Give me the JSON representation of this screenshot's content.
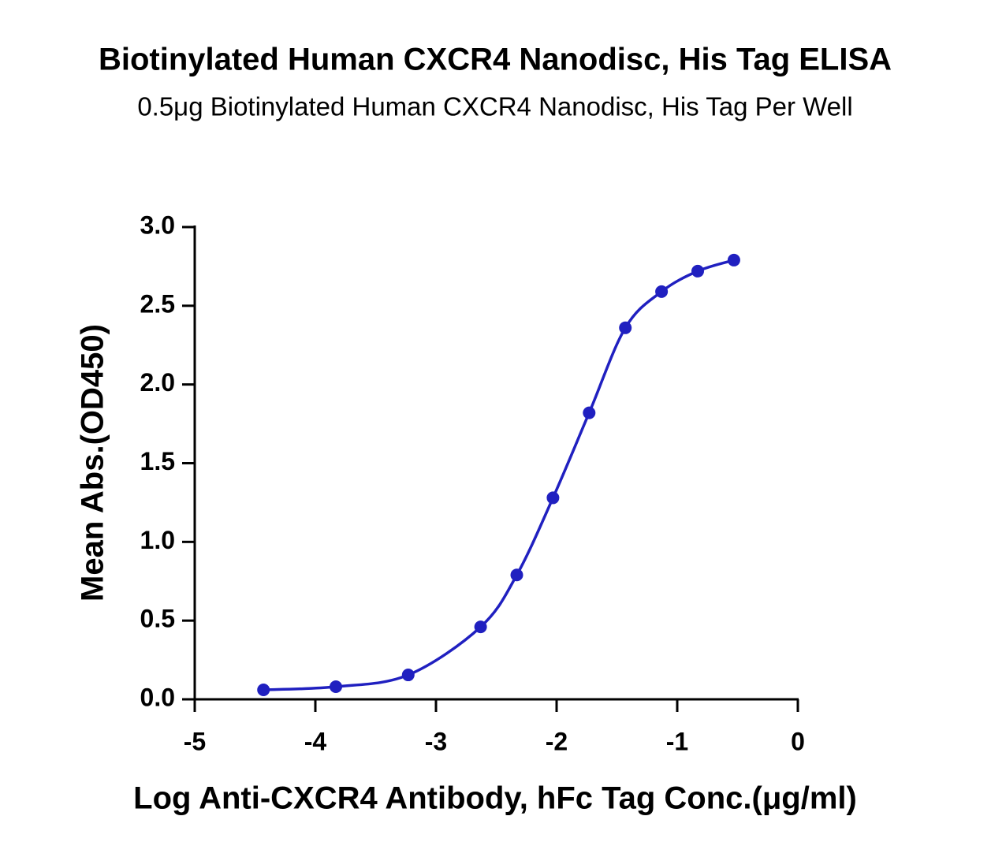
{
  "chart_data": {
    "type": "scatter",
    "title": "Biotinylated Human CXCR4 Nanodisc, His Tag ELISA",
    "subtitle": "0.5μg Biotinylated Human CXCR4 Nanodisc, His Tag Per Well",
    "xlabel": "Log Anti-CXCR4 Antibody, hFc Tag Conc.(μg/ml)",
    "ylabel": "Mean Abs.(OD450)",
    "x": [
      -4.43,
      -3.83,
      -3.23,
      -2.63,
      -2.33,
      -2.03,
      -1.73,
      -1.43,
      -1.13,
      -0.83,
      -0.53
    ],
    "y": [
      0.06,
      0.08,
      0.155,
      0.46,
      0.79,
      1.28,
      1.82,
      2.36,
      2.59,
      2.72,
      2.79
    ],
    "color": "#2020c0",
    "fit_line": true,
    "xlim": [
      -5,
      0
    ],
    "ylim": [
      0,
      3
    ],
    "xticks": [
      -5,
      -4,
      -3,
      -2,
      -1,
      0
    ],
    "yticks": [
      {
        "value": 0,
        "label": "0.0"
      },
      0.5,
      {
        "value": 1,
        "label": "1.0"
      },
      1.5,
      {
        "value": 2,
        "label": "2.0"
      },
      2.5,
      {
        "value": 3,
        "label": "3.0"
      }
    ]
  }
}
